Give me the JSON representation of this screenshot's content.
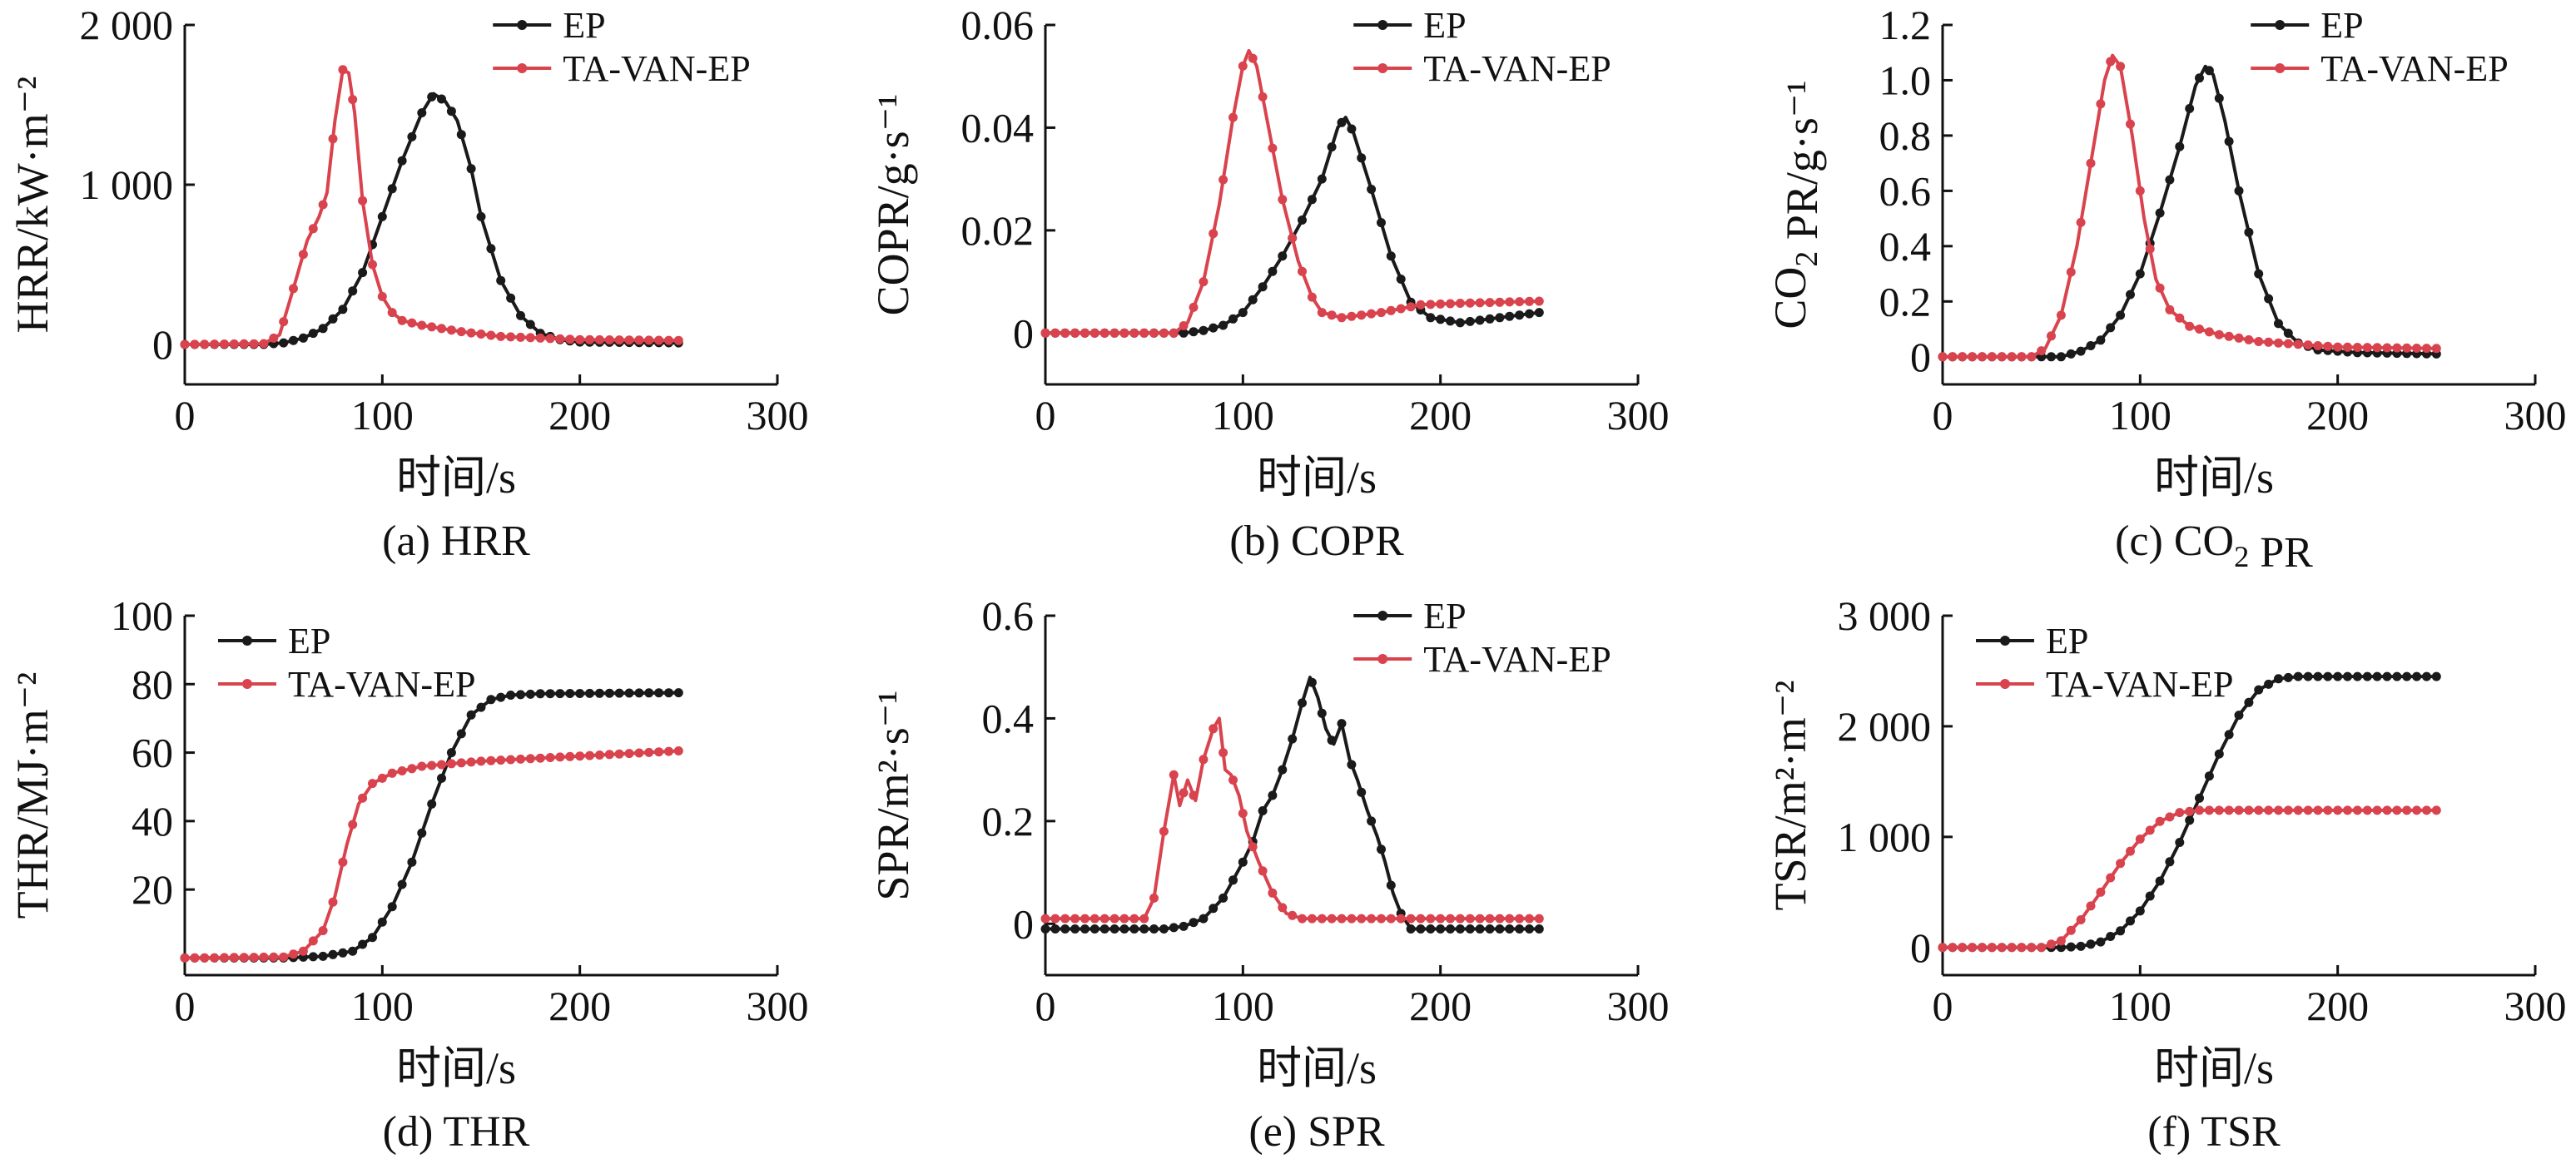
{
  "colors": {
    "ep": "#1a1a1a",
    "ta": "#d9434e"
  },
  "chart_data": [
    {
      "type": "line",
      "caption": "(a) HRR",
      "xlabel": "时间/s",
      "ylabel": "HRR/kW·m⁻²",
      "xlim": [
        0,
        300
      ],
      "ylim": [
        -250,
        2000
      ],
      "xticks": [
        0,
        100,
        200,
        300
      ],
      "xtick_labels": [
        "0",
        "100",
        "200",
        "300"
      ],
      "yticks": [
        0,
        1000,
        2000
      ],
      "ytick_labels": [
        "0",
        "1 000",
        "2 000"
      ],
      "legend": "top-right",
      "series": [
        {
          "name": "EP",
          "color": "#1a1a1a",
          "points": [
            [
              0,
              0
            ],
            [
              40,
              0
            ],
            [
              50,
              10
            ],
            [
              60,
              40
            ],
            [
              70,
              100
            ],
            [
              80,
              220
            ],
            [
              90,
              450
            ],
            [
              100,
              800
            ],
            [
              110,
              1150
            ],
            [
              120,
              1450
            ],
            [
              126,
              1570
            ],
            [
              132,
              1520
            ],
            [
              138,
              1400
            ],
            [
              145,
              1100
            ],
            [
              150,
              800
            ],
            [
              160,
              400
            ],
            [
              170,
              180
            ],
            [
              180,
              70
            ],
            [
              190,
              30
            ],
            [
              200,
              15
            ],
            [
              250,
              10
            ]
          ]
        },
        {
          "name": "TA-VAN-EP",
          "color": "#d9434e",
          "points": [
            [
              0,
              0
            ],
            [
              40,
              5
            ],
            [
              48,
              60
            ],
            [
              55,
              350
            ],
            [
              62,
              650
            ],
            [
              68,
              800
            ],
            [
              72,
              950
            ],
            [
              76,
              1400
            ],
            [
              80,
              1720
            ],
            [
              83,
              1700
            ],
            [
              86,
              1450
            ],
            [
              90,
              900
            ],
            [
              95,
              500
            ],
            [
              100,
              300
            ],
            [
              105,
              200
            ],
            [
              110,
              150
            ],
            [
              120,
              120
            ],
            [
              140,
              80
            ],
            [
              160,
              50
            ],
            [
              180,
              40
            ],
            [
              200,
              30
            ],
            [
              250,
              25
            ]
          ]
        }
      ]
    },
    {
      "type": "line",
      "caption": "(b) COPR",
      "xlabel": "时间/s",
      "ylabel": "COPR/g·s⁻¹",
      "xlim": [
        0,
        300
      ],
      "ylim": [
        -0.01,
        0.06
      ],
      "xticks": [
        0,
        100,
        200,
        300
      ],
      "xtick_labels": [
        "0",
        "100",
        "200",
        "300"
      ],
      "yticks": [
        0,
        0.02,
        0.04,
        0.06
      ],
      "ytick_labels": [
        "0",
        "0.02",
        "0.04",
        "0.06"
      ],
      "legend": "top-right",
      "series": [
        {
          "name": "EP",
          "color": "#1a1a1a",
          "points": [
            [
              0,
              0
            ],
            [
              70,
              0
            ],
            [
              80,
              0.0005
            ],
            [
              90,
              0.0015
            ],
            [
              100,
              0.004
            ],
            [
              110,
              0.009
            ],
            [
              120,
              0.015
            ],
            [
              130,
              0.022
            ],
            [
              140,
              0.03
            ],
            [
              148,
              0.04
            ],
            [
              152,
              0.042
            ],
            [
              156,
              0.039
            ],
            [
              165,
              0.028
            ],
            [
              175,
              0.015
            ],
            [
              185,
              0.006
            ],
            [
              195,
              0.003
            ],
            [
              210,
              0.002
            ],
            [
              250,
              0.004
            ]
          ]
        },
        {
          "name": "TA-VAN-EP",
          "color": "#d9434e",
          "points": [
            [
              0,
              0
            ],
            [
              65,
              0
            ],
            [
              72,
              0.002
            ],
            [
              80,
              0.01
            ],
            [
              88,
              0.025
            ],
            [
              95,
              0.042
            ],
            [
              100,
              0.052
            ],
            [
              103,
              0.055
            ],
            [
              107,
              0.052
            ],
            [
              112,
              0.042
            ],
            [
              120,
              0.026
            ],
            [
              128,
              0.014
            ],
            [
              135,
              0.007
            ],
            [
              140,
              0.004
            ],
            [
              150,
              0.003
            ],
            [
              170,
              0.004
            ],
            [
              190,
              0.0055
            ],
            [
              210,
              0.0058
            ],
            [
              250,
              0.0062
            ]
          ]
        }
      ]
    },
    {
      "type": "line",
      "caption": "(c) CO₂ PR",
      "xlabel": "时间/s",
      "ylabel": "CO₂ PR/g·s⁻¹",
      "xlim": [
        0,
        300
      ],
      "ylim": [
        -0.1,
        1.2
      ],
      "xticks": [
        0,
        100,
        200,
        300
      ],
      "xtick_labels": [
        "0",
        "100",
        "200",
        "300"
      ],
      "yticks": [
        0,
        0.2,
        0.4,
        0.6,
        0.8,
        1.0,
        1.2
      ],
      "ytick_labels": [
        "0",
        "0.2",
        "0.4",
        "0.6",
        "0.8",
        "1.0",
        "1.2"
      ],
      "legend": "top-right",
      "series": [
        {
          "name": "EP",
          "color": "#1a1a1a",
          "points": [
            [
              0,
              0
            ],
            [
              60,
              0
            ],
            [
              70,
              0.02
            ],
            [
              80,
              0.06
            ],
            [
              90,
              0.15
            ],
            [
              100,
              0.3
            ],
            [
              110,
              0.52
            ],
            [
              120,
              0.76
            ],
            [
              128,
              0.98
            ],
            [
              133,
              1.05
            ],
            [
              137,
              1.02
            ],
            [
              143,
              0.85
            ],
            [
              150,
              0.6
            ],
            [
              160,
              0.3
            ],
            [
              170,
              0.12
            ],
            [
              180,
              0.05
            ],
            [
              190,
              0.025
            ],
            [
              210,
              0.015
            ],
            [
              250,
              0.01
            ]
          ]
        },
        {
          "name": "TA-VAN-EP",
          "color": "#d9434e",
          "points": [
            [
              0,
              0
            ],
            [
              45,
              0
            ],
            [
              52,
              0.03
            ],
            [
              60,
              0.15
            ],
            [
              68,
              0.4
            ],
            [
              75,
              0.7
            ],
            [
              82,
              1.0
            ],
            [
              86,
              1.09
            ],
            [
              90,
              1.05
            ],
            [
              96,
              0.8
            ],
            [
              102,
              0.5
            ],
            [
              108,
              0.28
            ],
            [
              115,
              0.17
            ],
            [
              125,
              0.11
            ],
            [
              140,
              0.08
            ],
            [
              160,
              0.055
            ],
            [
              180,
              0.045
            ],
            [
              200,
              0.035
            ],
            [
              250,
              0.03
            ]
          ]
        }
      ]
    },
    {
      "type": "line",
      "caption": "(d) THR",
      "xlabel": "时间/s",
      "ylabel": "THR/MJ·m⁻²",
      "xlim": [
        0,
        300
      ],
      "ylim": [
        -5,
        100
      ],
      "xticks": [
        0,
        100,
        200,
        300
      ],
      "xtick_labels": [
        "0",
        "100",
        "200",
        "300"
      ],
      "yticks": [
        20,
        40,
        60,
        80,
        100
      ],
      "ytick_labels": [
        "20",
        "40",
        "60",
        "80",
        "100"
      ],
      "legend": "top-left",
      "series": [
        {
          "name": "EP",
          "color": "#1a1a1a",
          "points": [
            [
              0,
              0
            ],
            [
              50,
              0
            ],
            [
              70,
              0.5
            ],
            [
              85,
              2
            ],
            [
              95,
              6
            ],
            [
              105,
              15
            ],
            [
              115,
              28
            ],
            [
              125,
              45
            ],
            [
              135,
              60
            ],
            [
              145,
              71
            ],
            [
              155,
              75.5
            ],
            [
              165,
              76.8
            ],
            [
              180,
              77.2
            ],
            [
              250,
              77.5
            ]
          ]
        },
        {
          "name": "TA-VAN-EP",
          "color": "#d9434e",
          "points": [
            [
              0,
              0
            ],
            [
              50,
              0.3
            ],
            [
              60,
              2
            ],
            [
              70,
              8
            ],
            [
              76,
              18
            ],
            [
              82,
              33
            ],
            [
              88,
              45
            ],
            [
              95,
              51
            ],
            [
              105,
              54
            ],
            [
              120,
              56
            ],
            [
              150,
              57.5
            ],
            [
              200,
              59
            ],
            [
              250,
              60.5
            ]
          ]
        }
      ]
    },
    {
      "type": "line",
      "caption": "(e) SPR",
      "xlabel": "时间/s",
      "ylabel": "SPR/m²·s⁻¹",
      "xlim": [
        0,
        300
      ],
      "ylim": [
        -0.1,
        0.6
      ],
      "xticks": [
        0,
        100,
        200,
        300
      ],
      "xtick_labels": [
        "0",
        "100",
        "200",
        "300"
      ],
      "yticks": [
        0,
        0.2,
        0.4,
        0.6
      ],
      "ytick_labels": [
        "0",
        "0.2",
        "0.4",
        "0.6"
      ],
      "legend": "top-right",
      "series": [
        {
          "name": "EP",
          "color": "#1a1a1a",
          "points": [
            [
              0,
              -0.01
            ],
            [
              60,
              -0.01
            ],
            [
              70,
              -0.005
            ],
            [
              80,
              0.01
            ],
            [
              90,
              0.05
            ],
            [
              100,
              0.12
            ],
            [
              105,
              0.16
            ],
            [
              110,
              0.22
            ],
            [
              115,
              0.25
            ],
            [
              120,
              0.3
            ],
            [
              125,
              0.36
            ],
            [
              130,
              0.43
            ],
            [
              134,
              0.48
            ],
            [
              138,
              0.44
            ],
            [
              142,
              0.38
            ],
            [
              146,
              0.35
            ],
            [
              150,
              0.39
            ],
            [
              154,
              0.32
            ],
            [
              158,
              0.28
            ],
            [
              163,
              0.22
            ],
            [
              168,
              0.17
            ],
            [
              172,
              0.12
            ],
            [
              176,
              0.06
            ],
            [
              180,
              0.02
            ],
            [
              185,
              -0.01
            ],
            [
              250,
              -0.01
            ]
          ]
        },
        {
          "name": "TA-VAN-EP",
          "color": "#d9434e",
          "points": [
            [
              0,
              0.01
            ],
            [
              50,
              0.01
            ],
            [
              55,
              0.05
            ],
            [
              60,
              0.18
            ],
            [
              65,
              0.29
            ],
            [
              68,
              0.23
            ],
            [
              72,
              0.28
            ],
            [
              76,
              0.24
            ],
            [
              80,
              0.32
            ],
            [
              85,
              0.38
            ],
            [
              88,
              0.4
            ],
            [
              91,
              0.3
            ],
            [
              94,
              0.29
            ],
            [
              98,
              0.25
            ],
            [
              102,
              0.18
            ],
            [
              108,
              0.12
            ],
            [
              115,
              0.06
            ],
            [
              122,
              0.02
            ],
            [
              130,
              0.01
            ],
            [
              250,
              0.01
            ]
          ]
        }
      ]
    },
    {
      "type": "line",
      "caption": "(f) TSR",
      "xlabel": "时间/s",
      "ylabel": "TSR/m²·m⁻²",
      "xlim": [
        0,
        300
      ],
      "ylim": [
        -250,
        3000
      ],
      "xticks": [
        0,
        100,
        200,
        300
      ],
      "xtick_labels": [
        "0",
        "100",
        "200",
        "300"
      ],
      "yticks": [
        0,
        1000,
        2000,
        3000
      ],
      "ytick_labels": [
        "0",
        "1 000",
        "2 000",
        "3 000"
      ],
      "legend": "top-left",
      "series": [
        {
          "name": "EP",
          "color": "#1a1a1a",
          "points": [
            [
              0,
              0
            ],
            [
              60,
              0
            ],
            [
              70,
              10
            ],
            [
              80,
              50
            ],
            [
              90,
              150
            ],
            [
              100,
              330
            ],
            [
              110,
              600
            ],
            [
              120,
              950
            ],
            [
              130,
              1350
            ],
            [
              140,
              1750
            ],
            [
              150,
              2100
            ],
            [
              160,
              2330
            ],
            [
              170,
              2430
            ],
            [
              180,
              2450
            ],
            [
              250,
              2450
            ]
          ]
        },
        {
          "name": "TA-VAN-EP",
          "color": "#d9434e",
          "points": [
            [
              0,
              0
            ],
            [
              50,
              0
            ],
            [
              60,
              60
            ],
            [
              70,
              250
            ],
            [
              80,
              500
            ],
            [
              90,
              760
            ],
            [
              100,
              980
            ],
            [
              110,
              1140
            ],
            [
              120,
              1220
            ],
            [
              130,
              1240
            ],
            [
              250,
              1240
            ]
          ]
        }
      ]
    }
  ]
}
